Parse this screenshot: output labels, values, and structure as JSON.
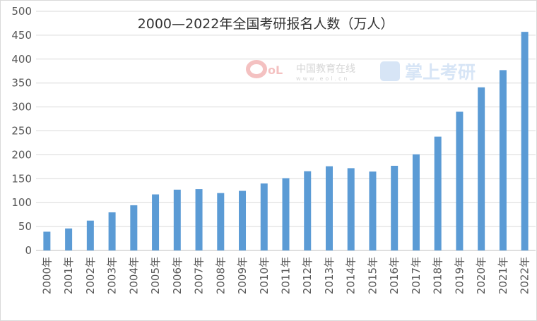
{
  "chart_data": {
    "type": "bar",
    "title": "2000—2022年全国考研报名人数（万人）",
    "xlabel": "",
    "ylabel": "",
    "ylim": [
      0,
      500
    ],
    "yticks": [
      0,
      50,
      100,
      150,
      200,
      250,
      300,
      350,
      400,
      450,
      500
    ],
    "grid": true,
    "legend": "none",
    "bar_color": "#5B9BD5",
    "categories": [
      "2000年",
      "2001年",
      "2002年",
      "2003年",
      "2004年",
      "2005年",
      "2006年",
      "2007年",
      "2008年",
      "2009年",
      "2010年",
      "2011年",
      "2012年",
      "2013年",
      "2014年",
      "2015年",
      "2016年",
      "2017年",
      "2018年",
      "2019年",
      "2020年",
      "2021年",
      "2022年"
    ],
    "values": [
      39.2,
      46,
      62.4,
      79.7,
      94.5,
      117.2,
      127.1,
      128.2,
      120,
      124.6,
      140,
      151.1,
      165.6,
      176,
      172,
      164.9,
      177,
      201,
      238,
      290,
      341,
      377,
      457
    ]
  },
  "watermarks": {
    "eol_logo": "eol",
    "eol_name": "中国教育在线",
    "eol_url": "www.eol.cn",
    "kaoyan_name": "掌上考研"
  }
}
